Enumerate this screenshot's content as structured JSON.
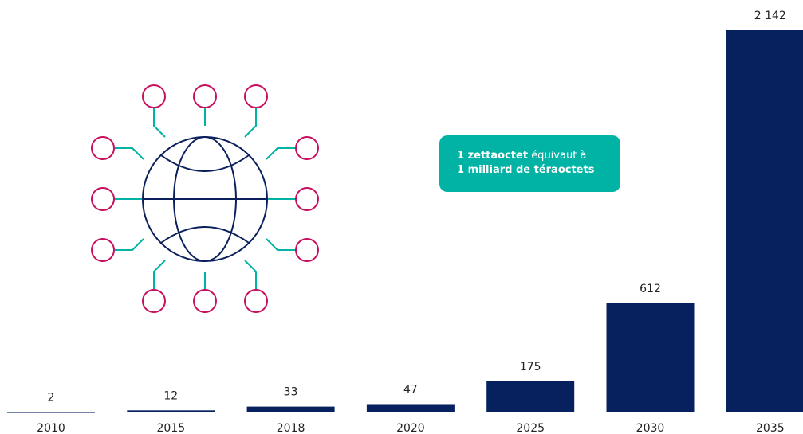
{
  "chart_data": {
    "type": "bar",
    "categories": [
      "2010",
      "2015",
      "2018",
      "2020",
      "2025",
      "2030",
      "2035"
    ],
    "values": [
      2,
      12,
      33,
      47,
      175,
      612,
      2142
    ],
    "value_labels": [
      "2",
      "12",
      "33",
      "47",
      "175",
      "612",
      "2 142"
    ],
    "color": "#07215e",
    "annotation": [
      "1 zettaoctet",
      "équivaut à",
      "1 milliard de téraoctets"
    ]
  }
}
